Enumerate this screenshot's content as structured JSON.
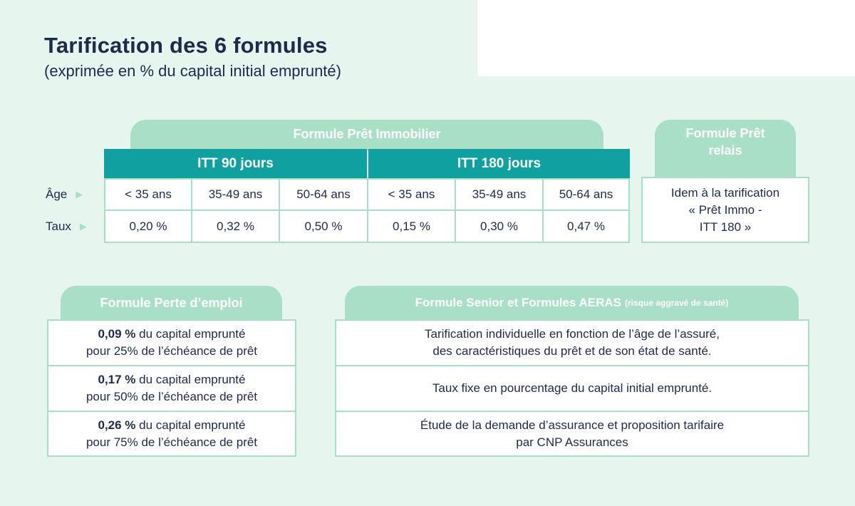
{
  "header": {
    "title": "Tarification des 6 formules",
    "subtitle": "(exprimée en % du capital initial emprunté)"
  },
  "pret_immobilier": {
    "tab_label": "Formule Prêt Immobilier",
    "itt90_label": "ITT 90 jours",
    "itt180_label": "ITT 180 jours",
    "age_label": "Âge",
    "taux_label": "Taux",
    "ages": [
      "< 35 ans",
      "35-49 ans",
      "50-64 ans",
      "< 35 ans",
      "35-49 ans",
      "50-64 ans"
    ],
    "taux": [
      "0,20 %",
      "0,32 %",
      "0,50 %",
      "0,15 %",
      "0,30 %",
      "0,47 %"
    ]
  },
  "pret_relais": {
    "tab_line1": "Formule Prêt",
    "tab_line2": "relais",
    "lines": [
      "Idem à la tarification",
      "« Prêt Immo -",
      "ITT 180 »"
    ]
  },
  "perte_emploi": {
    "tab_label": "Formule Perte d’emploi",
    "rows": [
      {
        "rate": "0,09 %",
        "line1_rest": " du capital emprunté",
        "line2": "pour 25% de l’échéance de prêt"
      },
      {
        "rate": "0,17 %",
        "line1_rest": " du capital emprunté",
        "line2": "pour 50% de l’échéance de prêt"
      },
      {
        "rate": "0,26 %",
        "line1_rest": " du capital emprunté",
        "line2": "pour 75% de l’échéance de prêt"
      }
    ]
  },
  "senior_aeras": {
    "tab_label": "Formule Senior et Formules AERAS",
    "tab_note": "(risque aggravé de santé)",
    "rows": [
      {
        "line1": "Tarification individuelle en fonction de l’âge de l’assuré,",
        "line2": "des caractéristiques du prêt et de son état de santé."
      },
      {
        "line1": "Taux fixe en pourcentage du capital initial emprunté.",
        "line2": ""
      },
      {
        "line1": "Étude de la demande d’assurance et proposition tarifaire",
        "line2": "par CNP Assurances"
      }
    ]
  },
  "colors": {
    "background": "#e6f5ee",
    "tab": "#a8dfc6",
    "header_teal": "#10a0a0",
    "text": "#1d2a4d"
  }
}
